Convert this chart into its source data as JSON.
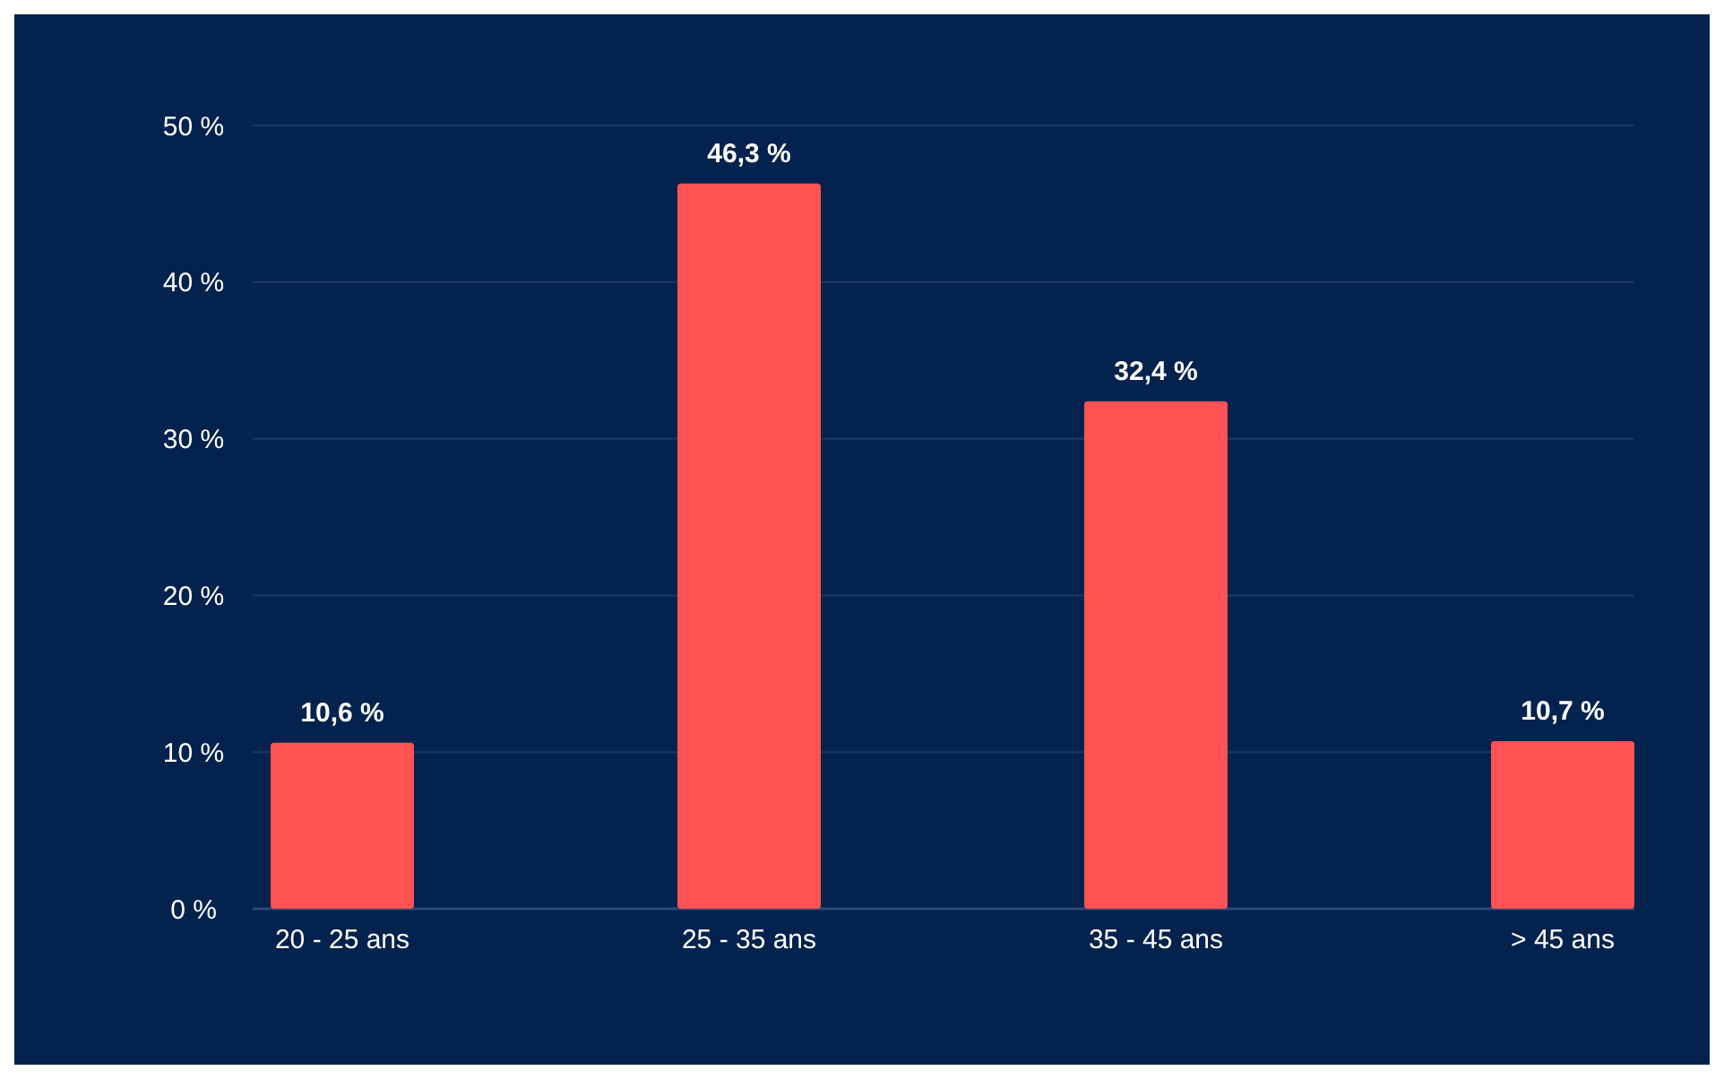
{
  "chart_data": {
    "type": "bar",
    "categories": [
      "20 - 25 ans",
      "25 - 35 ans",
      "35 - 45 ans",
      "> 45 ans"
    ],
    "values": [
      10.6,
      46.3,
      32.4,
      10.7
    ],
    "color": "#ff5252",
    "value_labels": [
      "10,6 %",
      "46,3 %",
      "32,4 %",
      "10,7 %"
    ],
    "ylim": [
      0,
      50
    ],
    "yticks": [
      {
        "value": 0,
        "label": "0 %"
      },
      {
        "value": 10,
        "label": "10 %"
      },
      {
        "value": 20,
        "label": "20 %"
      },
      {
        "value": 30,
        "label": "30 %"
      },
      {
        "value": 40,
        "label": "40 %"
      },
      {
        "value": 50,
        "label": "50 %"
      }
    ],
    "grid": "y"
  }
}
